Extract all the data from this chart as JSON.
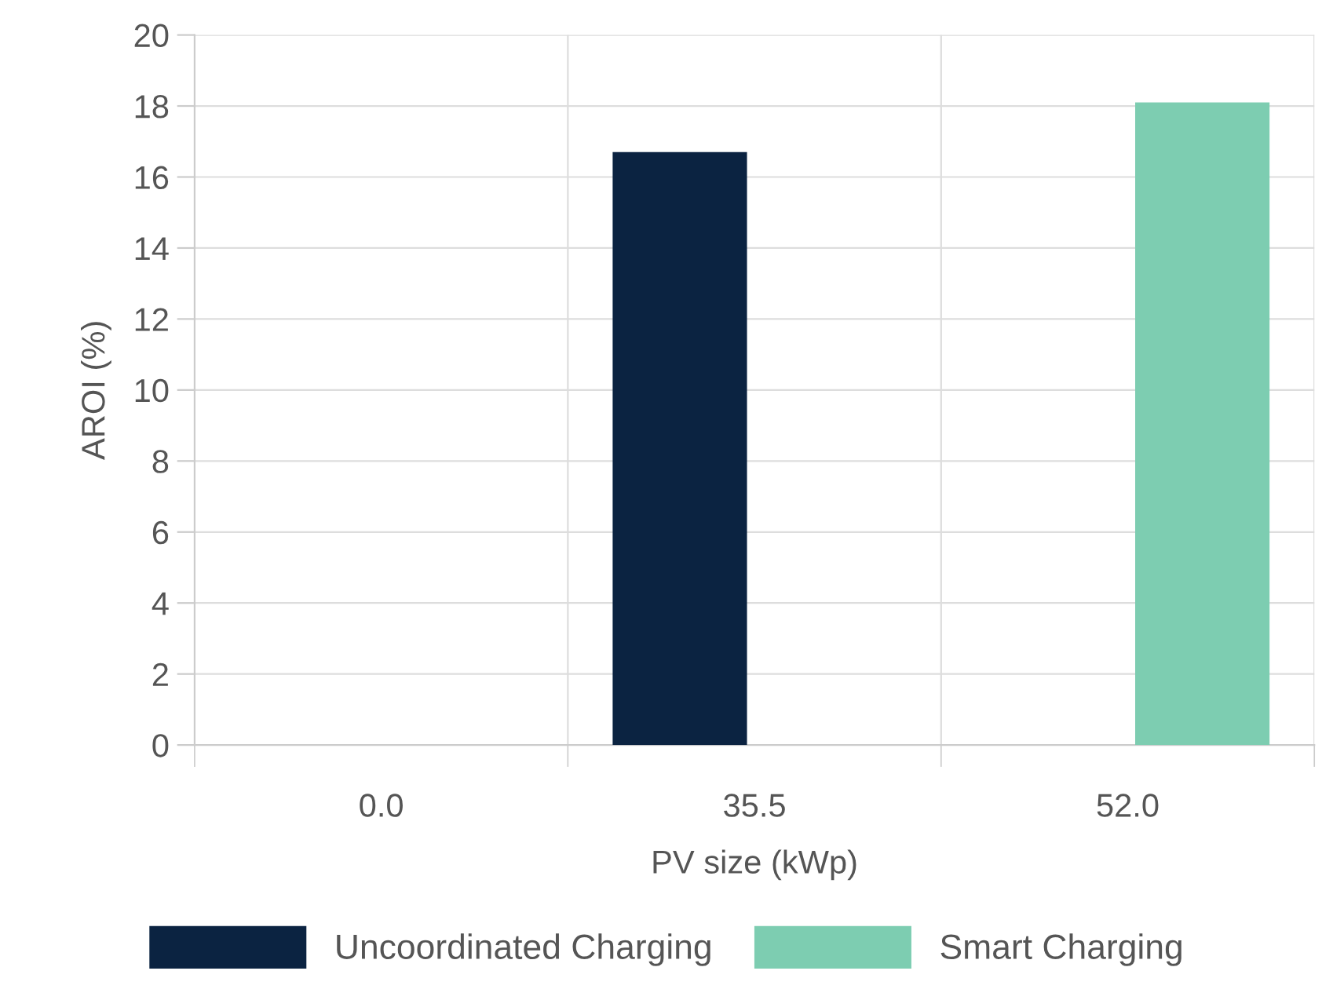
{
  "chart_data": {
    "type": "bar",
    "xlabel": "PV size (kWp)",
    "ylabel": "AROI (%)",
    "categories": [
      "0.0",
      "35.5",
      "52.0"
    ],
    "series": [
      {
        "name": "Uncoordinated Charging",
        "color": "#0b2341",
        "values": [
          null,
          16.7,
          null
        ]
      },
      {
        "name": "Smart Charging",
        "color": "#7dcdb1",
        "values": [
          null,
          null,
          18.1
        ]
      }
    ],
    "ylim": [
      0,
      20
    ],
    "yticks": [
      0,
      2,
      4,
      6,
      8,
      10,
      12,
      14,
      16,
      18,
      20
    ],
    "grid": true,
    "legend": "bottom"
  }
}
